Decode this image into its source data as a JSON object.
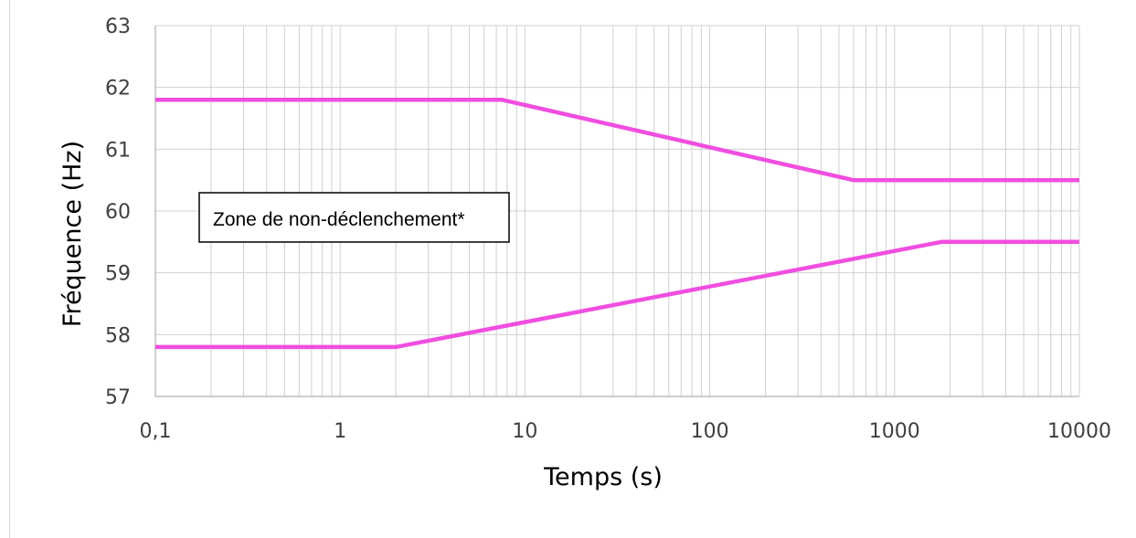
{
  "chart_data": {
    "type": "line",
    "xlabel": "Temps (s)",
    "ylabel": "Fréquence (Hz)",
    "xscale": "log",
    "xlim": [
      0.1,
      10000
    ],
    "ylim": [
      57,
      63
    ],
    "grid": true,
    "xticks": [
      "0,1",
      "1",
      "10",
      "100",
      "1000",
      "10000"
    ],
    "yticks": [
      "57",
      "58",
      "59",
      "60",
      "61",
      "62",
      "63"
    ],
    "annotation": "Zone de non-déclenchement*",
    "line_color": "#f04ee0",
    "series": [
      {
        "x": [
          0.1,
          7.5,
          600,
          10000
        ],
        "y": [
          61.8,
          61.8,
          60.5,
          60.5
        ]
      },
      {
        "x": [
          0.1,
          2,
          1800,
          10000
        ],
        "y": [
          57.8,
          57.8,
          59.5,
          59.5
        ]
      }
    ]
  }
}
